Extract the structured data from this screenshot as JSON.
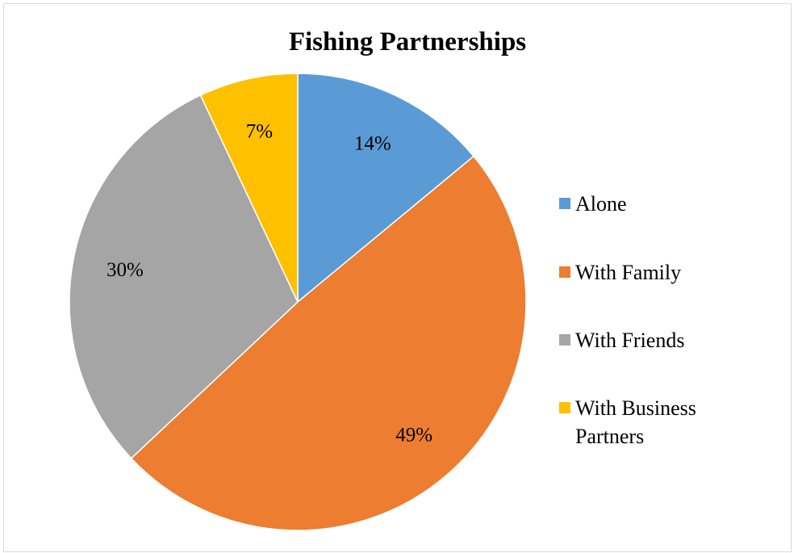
{
  "chart_data": {
    "type": "pie",
    "title": "Fishing Partnerships",
    "start_angle_deg": 0,
    "direction": "clockwise",
    "legend_position": "right",
    "slices": [
      {
        "label": "Alone",
        "legend_lines": [
          "Alone"
        ],
        "value": 14,
        "display": "14%",
        "color": "#5B9BD5"
      },
      {
        "label": "With Family",
        "legend_lines": [
          "With Family"
        ],
        "value": 49,
        "display": "49%",
        "color": "#ED7D31"
      },
      {
        "label": "With Friends",
        "legend_lines": [
          "With Friends"
        ],
        "value": 30,
        "display": "30%",
        "color": "#A5A5A5"
      },
      {
        "label": "With Business Partners",
        "legend_lines": [
          "With Business",
          "Partners"
        ],
        "value": 7,
        "display": "7%",
        "color": "#FFC000"
      }
    ]
  }
}
